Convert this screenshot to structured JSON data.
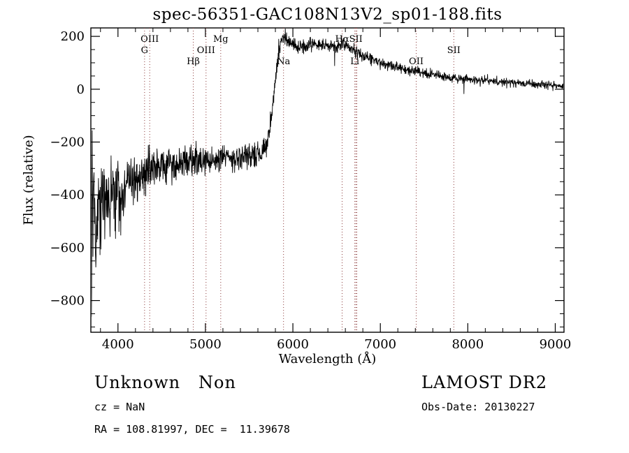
{
  "figure": {
    "title": "spec-56351-GAC108N13V2_sp01-188.fits",
    "xlabel": "Wavelength (Å)",
    "ylabel": "Flux (relative)"
  },
  "annotations": {
    "class_label": "Unknown   Non",
    "survey": "LAMOST DR2",
    "cz": "cz = NaN",
    "obs_date": "Obs-Date: 20130227",
    "ra_dec": "RA = 108.81997, DEC =  11.39678"
  },
  "chart_data": {
    "type": "line",
    "title": "spec-56351-GAC108N13V2_sp01-188.fits",
    "xlabel": "Wavelength (Å)",
    "ylabel": "Flux (relative)",
    "xlim": [
      3690,
      9100
    ],
    "ylim": [
      -920,
      232
    ],
    "grid": false,
    "legend": "none",
    "x_ticks": [
      {
        "v": 4000,
        "label": "4000"
      },
      {
        "v": 5000,
        "label": "5000"
      },
      {
        "v": 6000,
        "label": "6000"
      },
      {
        "v": 7000,
        "label": "7000"
      },
      {
        "v": 8000,
        "label": "8000"
      },
      {
        "v": 9000,
        "label": "9000"
      }
    ],
    "y_ticks": [
      {
        "v": 200,
        "label": "200"
      },
      {
        "v": 0,
        "label": "0"
      },
      {
        "v": -200,
        "label": "−200"
      },
      {
        "v": -400,
        "label": "−400"
      },
      {
        "v": -600,
        "label": "−600"
      },
      {
        "v": -800,
        "label": "−800"
      }
    ],
    "x_minor_step": 200,
    "y_minor_step": 50,
    "line_color": "#000000",
    "marker_line_color": "#8B3A3A",
    "spectral_lines": [
      {
        "label": "G",
        "wavelength": 4304,
        "level": 1
      },
      {
        "label": "OIII",
        "wavelength": 4363,
        "level": 0
      },
      {
        "label": "Hβ",
        "wavelength": 4861,
        "level": 2
      },
      {
        "label": "OIII",
        "wavelength": 5007,
        "level": 1
      },
      {
        "label": "Mg",
        "wavelength": 5175,
        "level": 0
      },
      {
        "label": "Na",
        "wavelength": 5893,
        "level": 2
      },
      {
        "label": "Hα",
        "wavelength": 6563,
        "level": 0
      },
      {
        "label": "Li",
        "wavelength": 6708,
        "level": 2
      },
      {
        "label": "SII",
        "wavelength": 6720,
        "level": 0
      },
      {
        "label": "",
        "wavelength": 6731,
        "level": 0
      },
      {
        "label": "OII",
        "wavelength": 7410,
        "level": 2
      },
      {
        "label": "SII",
        "wavelength": 7840,
        "level": 1
      }
    ],
    "series_description": "Noisy stellar/unknown spectrum: flux rises sharply near 5800 A from a noisy band around -300 (blue end, very noisy, diving to about -880 at 3700 A) up to a peak of about +200 near 5900-6500 A, then declines gradually to about 0-15 by 9000 A.",
    "continuum_points": [
      [
        3690,
        -60
      ],
      [
        3696,
        -860
      ],
      [
        3706,
        -300
      ],
      [
        3715,
        -600
      ],
      [
        3725,
        -420
      ],
      [
        3745,
        -540
      ],
      [
        3770,
        -430
      ],
      [
        3800,
        -470
      ],
      [
        3840,
        -400
      ],
      [
        3880,
        -440
      ],
      [
        3920,
        -390
      ],
      [
        3960,
        -410
      ],
      [
        4000,
        -370
      ],
      [
        4060,
        -400
      ],
      [
        4120,
        -350
      ],
      [
        4200,
        -340
      ],
      [
        4300,
        -320
      ],
      [
        4400,
        -305
      ],
      [
        4500,
        -295
      ],
      [
        4600,
        -285
      ],
      [
        4700,
        -278
      ],
      [
        4800,
        -272
      ],
      [
        4900,
        -268
      ],
      [
        5000,
        -265
      ],
      [
        5100,
        -262
      ],
      [
        5200,
        -258
      ],
      [
        5300,
        -260
      ],
      [
        5400,
        -256
      ],
      [
        5500,
        -252
      ],
      [
        5600,
        -246
      ],
      [
        5650,
        -238
      ],
      [
        5700,
        -205
      ],
      [
        5740,
        -140
      ],
      [
        5770,
        -60
      ],
      [
        5800,
        30
      ],
      [
        5830,
        120
      ],
      [
        5860,
        170
      ],
      [
        5890,
        195
      ],
      [
        5920,
        190
      ],
      [
        5960,
        178
      ],
      [
        6000,
        170
      ],
      [
        6100,
        162
      ],
      [
        6200,
        168
      ],
      [
        6300,
        170
      ],
      [
        6400,
        166
      ],
      [
        6500,
        164
      ],
      [
        6550,
        170
      ],
      [
        6600,
        168
      ],
      [
        6650,
        156
      ],
      [
        6700,
        146
      ],
      [
        6750,
        136
      ],
      [
        6800,
        126
      ],
      [
        6900,
        112
      ],
      [
        7000,
        100
      ],
      [
        7100,
        90
      ],
      [
        7200,
        82
      ],
      [
        7300,
        74
      ],
      [
        7400,
        67
      ],
      [
        7500,
        60
      ],
      [
        7600,
        54
      ],
      [
        7700,
        48
      ],
      [
        7800,
        44
      ],
      [
        7900,
        40
      ],
      [
        8000,
        37
      ],
      [
        8100,
        34
      ],
      [
        8200,
        32
      ],
      [
        8300,
        29
      ],
      [
        8400,
        27
      ],
      [
        8500,
        25
      ],
      [
        8600,
        23
      ],
      [
        8700,
        21
      ],
      [
        8800,
        19
      ],
      [
        8900,
        17
      ],
      [
        9000,
        15
      ],
      [
        9100,
        12
      ]
    ],
    "noise_profile": [
      [
        3690,
        170
      ],
      [
        3800,
        150
      ],
      [
        3900,
        130
      ],
      [
        4000,
        115
      ],
      [
        4100,
        105
      ],
      [
        4200,
        95
      ],
      [
        4300,
        85
      ],
      [
        4500,
        70
      ],
      [
        4700,
        60
      ],
      [
        5000,
        52
      ],
      [
        5300,
        48
      ],
      [
        5600,
        44
      ],
      [
        5750,
        38
      ],
      [
        5850,
        32
      ],
      [
        5950,
        28
      ],
      [
        6200,
        25
      ],
      [
        6500,
        23
      ],
      [
        6800,
        21
      ],
      [
        7100,
        19
      ],
      [
        7500,
        17
      ],
      [
        8000,
        16
      ],
      [
        8500,
        15
      ],
      [
        9100,
        14
      ]
    ]
  }
}
